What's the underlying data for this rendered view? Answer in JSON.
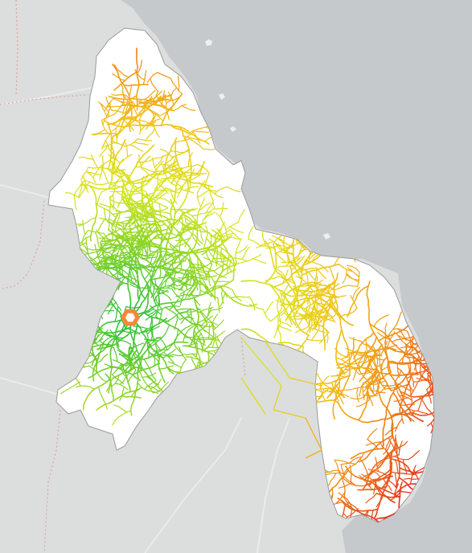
{
  "map": {
    "colors": {
      "land": "#dcdddd",
      "water": "#c6c9cb",
      "region_fill": "#ffffff",
      "region_stroke": "#9a9a9a",
      "admin_border": "#d9a79a",
      "road": "#ebebeb"
    },
    "color_scale": [
      "#1ebe3c",
      "#7dd22a",
      "#d7e61c",
      "#f2c418",
      "#f08c14",
      "#e52a1e"
    ],
    "marker": {
      "icon": "hexagon-marker-icon",
      "color": "#f4883a"
    },
    "stream_network": {
      "trunk_count": 30,
      "branch_depth": 4
    }
  }
}
